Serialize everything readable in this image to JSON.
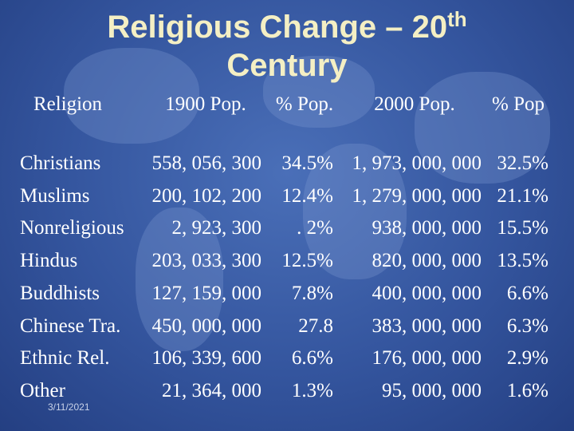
{
  "title": {
    "line1": "Religious Change – 20",
    "sup": "th",
    "line2": "Century"
  },
  "table": {
    "header": [
      "Religion",
      "1900 Pop.",
      "% Pop.",
      "2000 Pop.",
      "% Pop"
    ],
    "rows": [
      [
        "Christians",
        "558, 056, 300",
        "34.5%",
        "1, 973, 000, 000",
        "32.5%"
      ],
      [
        "Muslims",
        "200, 102, 200",
        "12.4%",
        "1, 279, 000, 000",
        "21.1%"
      ],
      [
        "Nonreligious",
        "2, 923, 300",
        ". 2%",
        "938, 000, 000",
        "15.5%"
      ],
      [
        "Hindus",
        "203, 033, 300",
        "12.5%",
        "820, 000, 000",
        "13.5%"
      ],
      [
        "Buddhists",
        "127, 159, 000",
        "7.8%",
        "400, 000, 000",
        "6.6%"
      ],
      [
        "Chinese Tra.",
        "450, 000, 000",
        "27.8",
        "383, 000, 000",
        "6.3%"
      ],
      [
        "Ethnic Rel.",
        "106, 339, 600",
        "6.6%",
        "176, 000, 000",
        "2.9%"
      ],
      [
        "Other",
        "21, 364, 000",
        "1.3%",
        "95, 000, 000",
        "1.6%"
      ]
    ]
  },
  "footer": {
    "date": "3/11/2021"
  }
}
